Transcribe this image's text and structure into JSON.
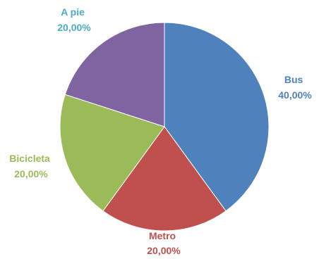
{
  "chart_data": {
    "type": "pie",
    "slices": [
      {
        "label": "Bus",
        "value": 40.0,
        "display": "40,00%",
        "color": "#4F81BD"
      },
      {
        "label": "Metro",
        "value": 20.0,
        "display": "20,00%",
        "color": "#C0504D"
      },
      {
        "label": "Bicicleta",
        "value": 20.0,
        "display": "20,00%",
        "color": "#9BBB59"
      },
      {
        "label": "A pie",
        "value": 20.0,
        "display": "20,00%",
        "color": "#8064A2"
      }
    ],
    "label_colors": [
      "#4F81BD",
      "#C0504D",
      "#9BBB59",
      "#4BACC6"
    ],
    "start_angle": "12 o'clock",
    "direction": "clockwise",
    "legend": "none",
    "data_labels": "outside, category name and percentage"
  }
}
